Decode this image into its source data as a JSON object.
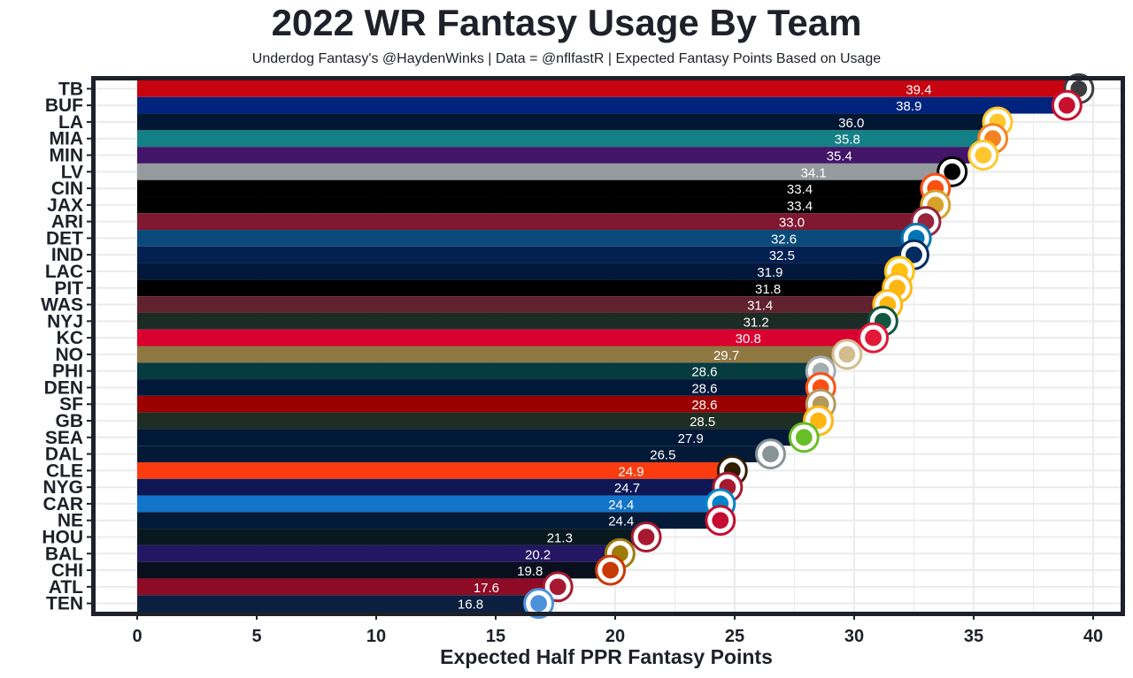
{
  "chart_data": {
    "type": "bar",
    "orientation": "horizontal",
    "title": "2022 WR Fantasy Usage By Team",
    "subtitle": "Underdog Fantasy's @HaydenWinks | Data = @nflfastR | Expected Fantasy Points Based on Usage",
    "xlabel": "Expected Half PPR Fantasy Points",
    "ylabel": "",
    "xlim": [
      0,
      40
    ],
    "xticks": [
      0,
      5,
      10,
      15,
      20,
      25,
      30,
      35,
      40
    ],
    "grid": true,
    "categories": [
      "TB",
      "BUF",
      "LA",
      "MIA",
      "MIN",
      "LV",
      "CIN",
      "JAX",
      "ARI",
      "DET",
      "IND",
      "LAC",
      "PIT",
      "WAS",
      "NYJ",
      "KC",
      "NO",
      "PHI",
      "DEN",
      "SF",
      "GB",
      "SEA",
      "DAL",
      "CLE",
      "NYG",
      "CAR",
      "NE",
      "HOU",
      "BAL",
      "CHI",
      "ATL",
      "TEN"
    ],
    "values": [
      39.4,
      38.9,
      36.0,
      35.8,
      35.4,
      34.1,
      33.4,
      33.4,
      33.0,
      32.6,
      32.5,
      31.9,
      31.8,
      31.4,
      31.2,
      30.8,
      29.7,
      28.6,
      28.6,
      28.6,
      28.5,
      27.9,
      26.5,
      24.9,
      24.7,
      24.4,
      24.4,
      21.3,
      20.2,
      19.8,
      17.6,
      16.8
    ],
    "value_labels": [
      "39.4",
      "38.9",
      "36.0",
      "35.8",
      "35.4",
      "34.1",
      "33.4",
      "33.4",
      "33.0",
      "32.6",
      "32.5",
      "31.9",
      "31.8",
      "31.4",
      "31.2",
      "30.8",
      "29.7",
      "28.6",
      "28.6",
      "28.6",
      "28.5",
      "27.9",
      "26.5",
      "24.9",
      "24.7",
      "24.4",
      "24.4",
      "21.3",
      "20.2",
      "19.8",
      "17.6",
      "16.8"
    ],
    "colors": [
      "#c8020f",
      "#00237d",
      "#021832",
      "#138086",
      "#421569",
      "#949a9d",
      "#000000",
      "#000000",
      "#801832",
      "#0a4a7a",
      "#032052",
      "#02183a",
      "#000000",
      "#60222e",
      "#1c2b25",
      "#d90030",
      "#8f7842",
      "#063b40",
      "#021838",
      "#9b0000",
      "#1d2e25",
      "#021838",
      "#031a36",
      "#fa3c10",
      "#0d1753",
      "#1275c9",
      "#031a38",
      "#08181f",
      "#241662",
      "#0a0f1d",
      "#8e0a25",
      "#0b2040"
    ],
    "logo_colors": [
      "#3d3c3e",
      "#c8102e",
      "#ffc72c",
      "#f58220",
      "#ffc62f",
      "#000000",
      "#fb4f14",
      "#d7a22a",
      "#97233f",
      "#0076b6",
      "#002c5f",
      "#ffc20e",
      "#ffb612",
      "#ffb612",
      "#125740",
      "#e31837",
      "#d3bc8d",
      "#a5acaf",
      "#fb4f14",
      "#b3995d",
      "#ffb612",
      "#69be28",
      "#869397",
      "#311d00",
      "#a71930",
      "#0085ca",
      "#c60c30",
      "#a71930",
      "#9e7c0c",
      "#c83803",
      "#a71930",
      "#4b92db"
    ]
  }
}
